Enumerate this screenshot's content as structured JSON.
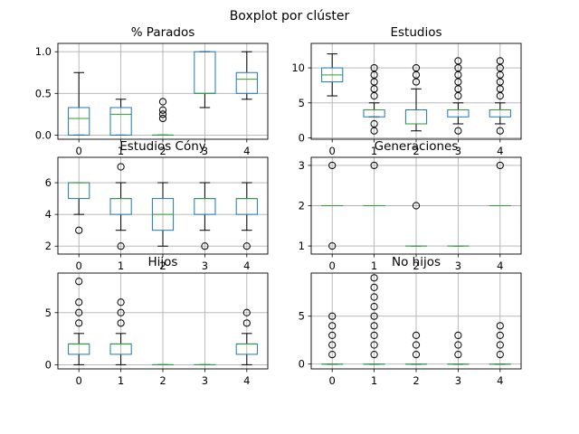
{
  "figure_title": "Boxplot por clúster",
  "colors": {
    "box": "#1f77b4",
    "median": "#2ca02c",
    "whisker": "#000000",
    "flier": "#000000",
    "grid": "#b0b0b0"
  },
  "chart_data": [
    {
      "type": "box",
      "title": "% Parados",
      "categories": [
        "0",
        "1",
        "2",
        "3",
        "4"
      ],
      "ylim": [
        -0.05,
        1.1
      ],
      "yticks": [
        0.0,
        0.5,
        1.0
      ],
      "ytick_labels": [
        "0.0",
        "0.5",
        "1.0"
      ],
      "grid": true,
      "boxes": [
        {
          "category": "0",
          "whislo": 0,
          "q1": 0,
          "med": 0.2,
          "q3": 0.33,
          "whishi": 0.75,
          "fliers": []
        },
        {
          "category": "1",
          "whislo": 0,
          "q1": 0,
          "med": 0.25,
          "q3": 0.33,
          "whishi": 0.43,
          "fliers": []
        },
        {
          "category": "2",
          "whislo": 0,
          "q1": 0,
          "med": 0,
          "q3": 0,
          "whishi": 0,
          "fliers": [
            0.2,
            0.25,
            0.3,
            0.4
          ]
        },
        {
          "category": "3",
          "whislo": 0.33,
          "q1": 0.5,
          "med": 0.5,
          "q3": 1.0,
          "whishi": 1.0,
          "fliers": []
        },
        {
          "category": "4",
          "whislo": 0.43,
          "q1": 0.5,
          "med": 0.67,
          "q3": 0.75,
          "whishi": 1.0,
          "fliers": []
        }
      ]
    },
    {
      "type": "box",
      "title": "Estudios",
      "categories": [
        "0",
        "1",
        "2",
        "3",
        "4"
      ],
      "ylim": [
        -0.2,
        13.5
      ],
      "yticks": [
        0,
        5,
        10
      ],
      "ytick_labels": [
        "0",
        "5",
        "10"
      ],
      "grid": true,
      "boxes": [
        {
          "category": "0",
          "whislo": 6,
          "q1": 8,
          "med": 9,
          "q3": 10,
          "whishi": 12,
          "fliers": []
        },
        {
          "category": "1",
          "whislo": 3,
          "q1": 3,
          "med": 4,
          "q3": 4,
          "whishi": 5,
          "fliers": [
            1,
            2,
            6,
            7,
            8,
            9,
            10
          ]
        },
        {
          "category": "2",
          "whislo": 1,
          "q1": 2,
          "med": 2,
          "q3": 4,
          "whishi": 7,
          "fliers": [
            8,
            9,
            10
          ]
        },
        {
          "category": "3",
          "whislo": 2,
          "q1": 3,
          "med": 4,
          "q3": 4,
          "whishi": 5,
          "fliers": [
            1,
            6,
            7,
            8,
            9,
            10,
            11
          ]
        },
        {
          "category": "4",
          "whislo": 2,
          "q1": 3,
          "med": 4,
          "q3": 4,
          "whishi": 5,
          "fliers": [
            1,
            6,
            7,
            8,
            9,
            10,
            11
          ]
        }
      ]
    },
    {
      "type": "box",
      "title": "Estudios Cóny",
      "categories": [
        "0",
        "1",
        "2",
        "3",
        "4"
      ],
      "ylim": [
        1.5,
        7.6
      ],
      "yticks": [
        2,
        4,
        6
      ],
      "ytick_labels": [
        "2",
        "4",
        "6"
      ],
      "grid": true,
      "boxes": [
        {
          "category": "0",
          "whislo": 4,
          "q1": 5,
          "med": 6,
          "q3": 6,
          "whishi": 6,
          "fliers": [
            3
          ]
        },
        {
          "category": "1",
          "whislo": 3,
          "q1": 4,
          "med": 5,
          "q3": 5,
          "whishi": 6,
          "fliers": [
            2,
            7
          ]
        },
        {
          "category": "2",
          "whislo": 2,
          "q1": 3,
          "med": 4,
          "q3": 5,
          "whishi": 6,
          "fliers": []
        },
        {
          "category": "3",
          "whislo": 3,
          "q1": 4,
          "med": 5,
          "q3": 5,
          "whishi": 6,
          "fliers": [
            2
          ]
        },
        {
          "category": "4",
          "whislo": 3,
          "q1": 4,
          "med": 5,
          "q3": 5,
          "whishi": 6,
          "fliers": [
            2
          ]
        }
      ]
    },
    {
      "type": "box",
      "title": "Generaciones",
      "categories": [
        "0",
        "1",
        "2",
        "3",
        "4"
      ],
      "ylim": [
        0.8,
        3.2
      ],
      "yticks": [
        1,
        2,
        3
      ],
      "ytick_labels": [
        "1",
        "2",
        "3"
      ],
      "grid": true,
      "boxes": [
        {
          "category": "0",
          "whislo": 2,
          "q1": 2,
          "med": 2,
          "q3": 2,
          "whishi": 2,
          "fliers": [
            1,
            3
          ]
        },
        {
          "category": "1",
          "whislo": 2,
          "q1": 2,
          "med": 2,
          "q3": 2,
          "whishi": 2,
          "fliers": [
            3
          ]
        },
        {
          "category": "2",
          "whislo": 1,
          "q1": 1,
          "med": 1,
          "q3": 1,
          "whishi": 1,
          "fliers": [
            2
          ]
        },
        {
          "category": "3",
          "whislo": 1,
          "q1": 1,
          "med": 1,
          "q3": 1,
          "whishi": 1,
          "fliers": []
        },
        {
          "category": "4",
          "whislo": 2,
          "q1": 2,
          "med": 2,
          "q3": 2,
          "whishi": 2,
          "fliers": [
            3
          ]
        }
      ]
    },
    {
      "type": "box",
      "title": "Hijos",
      "categories": [
        "0",
        "1",
        "2",
        "3",
        "4"
      ],
      "ylim": [
        -0.4,
        8.8
      ],
      "yticks": [
        0,
        5
      ],
      "ytick_labels": [
        "0",
        "5"
      ],
      "grid": true,
      "boxes": [
        {
          "category": "0",
          "whislo": 0,
          "q1": 1,
          "med": 2,
          "q3": 2,
          "whishi": 3,
          "fliers": [
            4,
            5,
            6,
            8
          ]
        },
        {
          "category": "1",
          "whislo": 0,
          "q1": 1,
          "med": 2,
          "q3": 2,
          "whishi": 3,
          "fliers": [
            4,
            5,
            6
          ]
        },
        {
          "category": "2",
          "whislo": 0,
          "q1": 0,
          "med": 0,
          "q3": 0,
          "whishi": 0,
          "fliers": []
        },
        {
          "category": "3",
          "whislo": 0,
          "q1": 0,
          "med": 0,
          "q3": 0,
          "whishi": 0,
          "fliers": []
        },
        {
          "category": "4",
          "whislo": 0,
          "q1": 1,
          "med": 2,
          "q3": 2,
          "whishi": 3,
          "fliers": [
            4,
            5
          ]
        }
      ]
    },
    {
      "type": "box",
      "title": "No hijos",
      "categories": [
        "0",
        "1",
        "2",
        "3",
        "4"
      ],
      "ylim": [
        -0.5,
        9.5
      ],
      "yticks": [
        0,
        5
      ],
      "ytick_labels": [
        "0",
        "5"
      ],
      "grid": true,
      "boxes": [
        {
          "category": "0",
          "whislo": 0,
          "q1": 0,
          "med": 0,
          "q3": 0,
          "whishi": 0,
          "fliers": [
            1,
            2,
            3,
            4,
            5
          ]
        },
        {
          "category": "1",
          "whislo": 0,
          "q1": 0,
          "med": 0,
          "q3": 0,
          "whishi": 0,
          "fliers": [
            1,
            2,
            3,
            4,
            5,
            6,
            7,
            8,
            9
          ]
        },
        {
          "category": "2",
          "whislo": 0,
          "q1": 0,
          "med": 0,
          "q3": 0,
          "whishi": 0,
          "fliers": [
            1,
            2,
            3
          ]
        },
        {
          "category": "3",
          "whislo": 0,
          "q1": 0,
          "med": 0,
          "q3": 0,
          "whishi": 0,
          "fliers": [
            1,
            2,
            3
          ]
        },
        {
          "category": "4",
          "whislo": 0,
          "q1": 0,
          "med": 0,
          "q3": 0,
          "whishi": 0,
          "fliers": [
            1,
            2,
            3,
            4
          ]
        }
      ]
    }
  ]
}
